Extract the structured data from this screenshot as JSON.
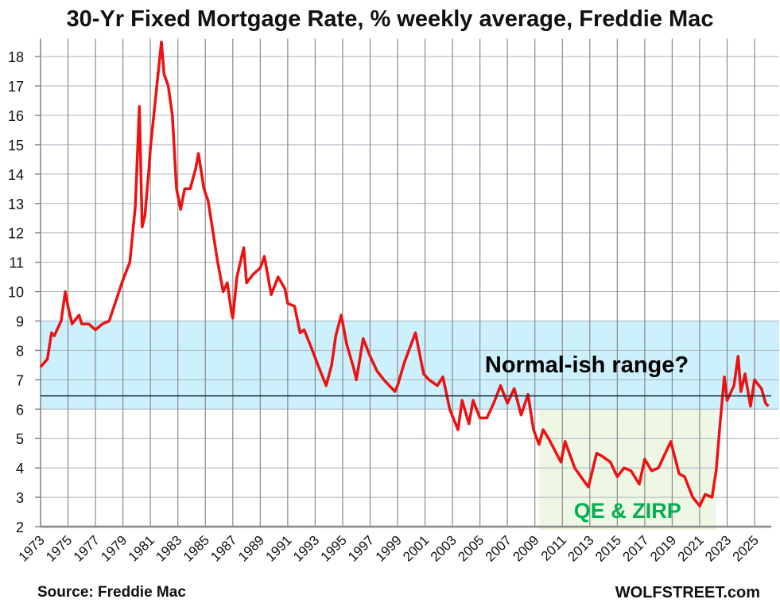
{
  "chart_data": {
    "type": "line",
    "title": "30-Yr Fixed Mortgage Rate, % weekly average, Freddie Mac",
    "xlabel": "",
    "ylabel": "",
    "ylim": [
      2,
      18.5
    ],
    "xlim": [
      1973,
      2026.2
    ],
    "yticks": [
      2,
      3,
      4,
      5,
      6,
      7,
      8,
      9,
      10,
      11,
      12,
      13,
      14,
      15,
      16,
      17,
      18
    ],
    "xticks": [
      1973,
      1975,
      1977,
      1979,
      1981,
      1983,
      1985,
      1987,
      1989,
      1991,
      1993,
      1995,
      1997,
      1999,
      2001,
      2003,
      2005,
      2007,
      2009,
      2011,
      2013,
      2015,
      2017,
      2019,
      2021,
      2023,
      2025
    ],
    "grid": true,
    "series": [
      {
        "name": "30-Yr Fixed Mortgage Rate",
        "color": "#ee1111",
        "points": [
          [
            1973.0,
            7.44
          ],
          [
            1973.5,
            7.7
          ],
          [
            1973.8,
            8.6
          ],
          [
            1974.0,
            8.5
          ],
          [
            1974.5,
            9.0
          ],
          [
            1974.8,
            10.0
          ],
          [
            1975.0,
            9.5
          ],
          [
            1975.3,
            8.9
          ],
          [
            1975.8,
            9.2
          ],
          [
            1976.0,
            8.9
          ],
          [
            1976.5,
            8.9
          ],
          [
            1977.0,
            8.7
          ],
          [
            1977.5,
            8.9
          ],
          [
            1978.0,
            9.0
          ],
          [
            1978.5,
            9.7
          ],
          [
            1979.0,
            10.4
          ],
          [
            1979.5,
            11.0
          ],
          [
            1979.9,
            12.9
          ],
          [
            1980.2,
            16.3
          ],
          [
            1980.4,
            12.2
          ],
          [
            1980.6,
            12.6
          ],
          [
            1980.9,
            14.2
          ],
          [
            1981.0,
            14.9
          ],
          [
            1981.4,
            16.7
          ],
          [
            1981.8,
            18.5
          ],
          [
            1982.0,
            17.4
          ],
          [
            1982.3,
            17.0
          ],
          [
            1982.6,
            16.0
          ],
          [
            1982.9,
            13.5
          ],
          [
            1983.2,
            12.8
          ],
          [
            1983.5,
            13.5
          ],
          [
            1983.9,
            13.5
          ],
          [
            1984.3,
            14.2
          ],
          [
            1984.5,
            14.7
          ],
          [
            1984.9,
            13.5
          ],
          [
            1985.2,
            13.1
          ],
          [
            1985.5,
            12.2
          ],
          [
            1985.9,
            11.0
          ],
          [
            1986.3,
            10.0
          ],
          [
            1986.6,
            10.3
          ],
          [
            1986.9,
            9.3
          ],
          [
            1987.0,
            9.1
          ],
          [
            1987.3,
            10.5
          ],
          [
            1987.8,
            11.5
          ],
          [
            1988.0,
            10.3
          ],
          [
            1988.5,
            10.6
          ],
          [
            1989.0,
            10.8
          ],
          [
            1989.3,
            11.2
          ],
          [
            1989.8,
            9.9
          ],
          [
            1990.3,
            10.5
          ],
          [
            1990.8,
            10.1
          ],
          [
            1991.0,
            9.6
          ],
          [
            1991.5,
            9.5
          ],
          [
            1991.9,
            8.6
          ],
          [
            1992.2,
            8.7
          ],
          [
            1992.8,
            8.0
          ],
          [
            1993.2,
            7.5
          ],
          [
            1993.8,
            6.8
          ],
          [
            1994.2,
            7.5
          ],
          [
            1994.5,
            8.5
          ],
          [
            1994.9,
            9.2
          ],
          [
            1995.3,
            8.2
          ],
          [
            1995.8,
            7.4
          ],
          [
            1996.0,
            7.0
          ],
          [
            1996.5,
            8.4
          ],
          [
            1997.0,
            7.8
          ],
          [
            1997.5,
            7.3
          ],
          [
            1998.0,
            7.0
          ],
          [
            1998.8,
            6.6
          ],
          [
            1999.0,
            6.8
          ],
          [
            1999.5,
            7.6
          ],
          [
            2000.3,
            8.6
          ],
          [
            2000.9,
            7.2
          ],
          [
            2001.3,
            7.0
          ],
          [
            2001.9,
            6.8
          ],
          [
            2002.3,
            7.1
          ],
          [
            2002.8,
            6.0
          ],
          [
            2003.4,
            5.3
          ],
          [
            2003.7,
            6.3
          ],
          [
            2004.2,
            5.5
          ],
          [
            2004.5,
            6.3
          ],
          [
            2005.0,
            5.7
          ],
          [
            2005.5,
            5.7
          ],
          [
            2006.0,
            6.2
          ],
          [
            2006.5,
            6.8
          ],
          [
            2007.0,
            6.2
          ],
          [
            2007.5,
            6.7
          ],
          [
            2008.0,
            5.8
          ],
          [
            2008.5,
            6.5
          ],
          [
            2008.9,
            5.3
          ],
          [
            2009.3,
            4.8
          ],
          [
            2009.6,
            5.3
          ],
          [
            2010.0,
            5.0
          ],
          [
            2010.9,
            4.2
          ],
          [
            2011.2,
            4.9
          ],
          [
            2011.9,
            4.0
          ],
          [
            2012.5,
            3.6
          ],
          [
            2012.9,
            3.35
          ],
          [
            2013.5,
            4.5
          ],
          [
            2013.9,
            4.4
          ],
          [
            2014.5,
            4.2
          ],
          [
            2015.0,
            3.7
          ],
          [
            2015.5,
            4.0
          ],
          [
            2016.0,
            3.9
          ],
          [
            2016.6,
            3.45
          ],
          [
            2017.0,
            4.3
          ],
          [
            2017.5,
            3.9
          ],
          [
            2018.0,
            4.0
          ],
          [
            2018.9,
            4.9
          ],
          [
            2019.5,
            3.8
          ],
          [
            2019.9,
            3.7
          ],
          [
            2020.5,
            3.0
          ],
          [
            2021.0,
            2.7
          ],
          [
            2021.4,
            3.1
          ],
          [
            2021.9,
            3.0
          ],
          [
            2022.2,
            3.9
          ],
          [
            2022.5,
            5.6
          ],
          [
            2022.8,
            7.1
          ],
          [
            2023.0,
            6.3
          ],
          [
            2023.5,
            6.8
          ],
          [
            2023.8,
            7.8
          ],
          [
            2024.0,
            6.6
          ],
          [
            2024.3,
            7.2
          ],
          [
            2024.7,
            6.1
          ],
          [
            2025.0,
            7.0
          ],
          [
            2025.5,
            6.7
          ],
          [
            2025.8,
            6.2
          ],
          [
            2026.0,
            6.1
          ]
        ]
      }
    ],
    "annotations": {
      "normal_band": {
        "label": "Normal-ish range?",
        "y_range": [
          6,
          9
        ],
        "color": "#ccf0fc"
      },
      "qe_band": {
        "label": "QE & ZIRP",
        "x_range": [
          2009.3,
          2022.2
        ],
        "y_range": [
          2,
          6
        ],
        "color": "#eef7e4",
        "text_color": "#00b050"
      },
      "reference_line": {
        "y": 6.45,
        "color": "#1a2a3a"
      }
    }
  },
  "footer": {
    "source": "Source: Freddie Mac",
    "brand": "WOLFSTREET.com"
  }
}
